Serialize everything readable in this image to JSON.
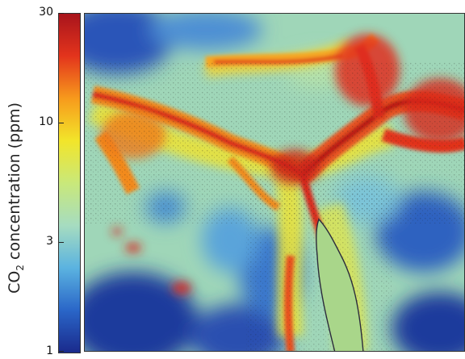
{
  "figure": {
    "colorbar": {
      "label_prefix": "CO",
      "label_subscript": "2",
      "label_suffix": " concentration (ppm)",
      "scale": "log",
      "range": [
        1,
        30
      ],
      "ticks": [
        {
          "value": 30,
          "label": "30"
        },
        {
          "value": 10,
          "label": "10"
        },
        {
          "value": 3,
          "label": "3"
        },
        {
          "value": 1,
          "label": "1"
        }
      ],
      "colors": [
        "#1a2a8c",
        "#2a66c8",
        "#5bb3e0",
        "#a6dcc0",
        "#c9e87a",
        "#f2e52a",
        "#f79a1c",
        "#e3341c",
        "#a8141c"
      ]
    },
    "map": {
      "description_colors": {
        "low": "#2a5fc0",
        "mid": "#a8dcb5",
        "high": "#e0261c"
      }
    }
  }
}
